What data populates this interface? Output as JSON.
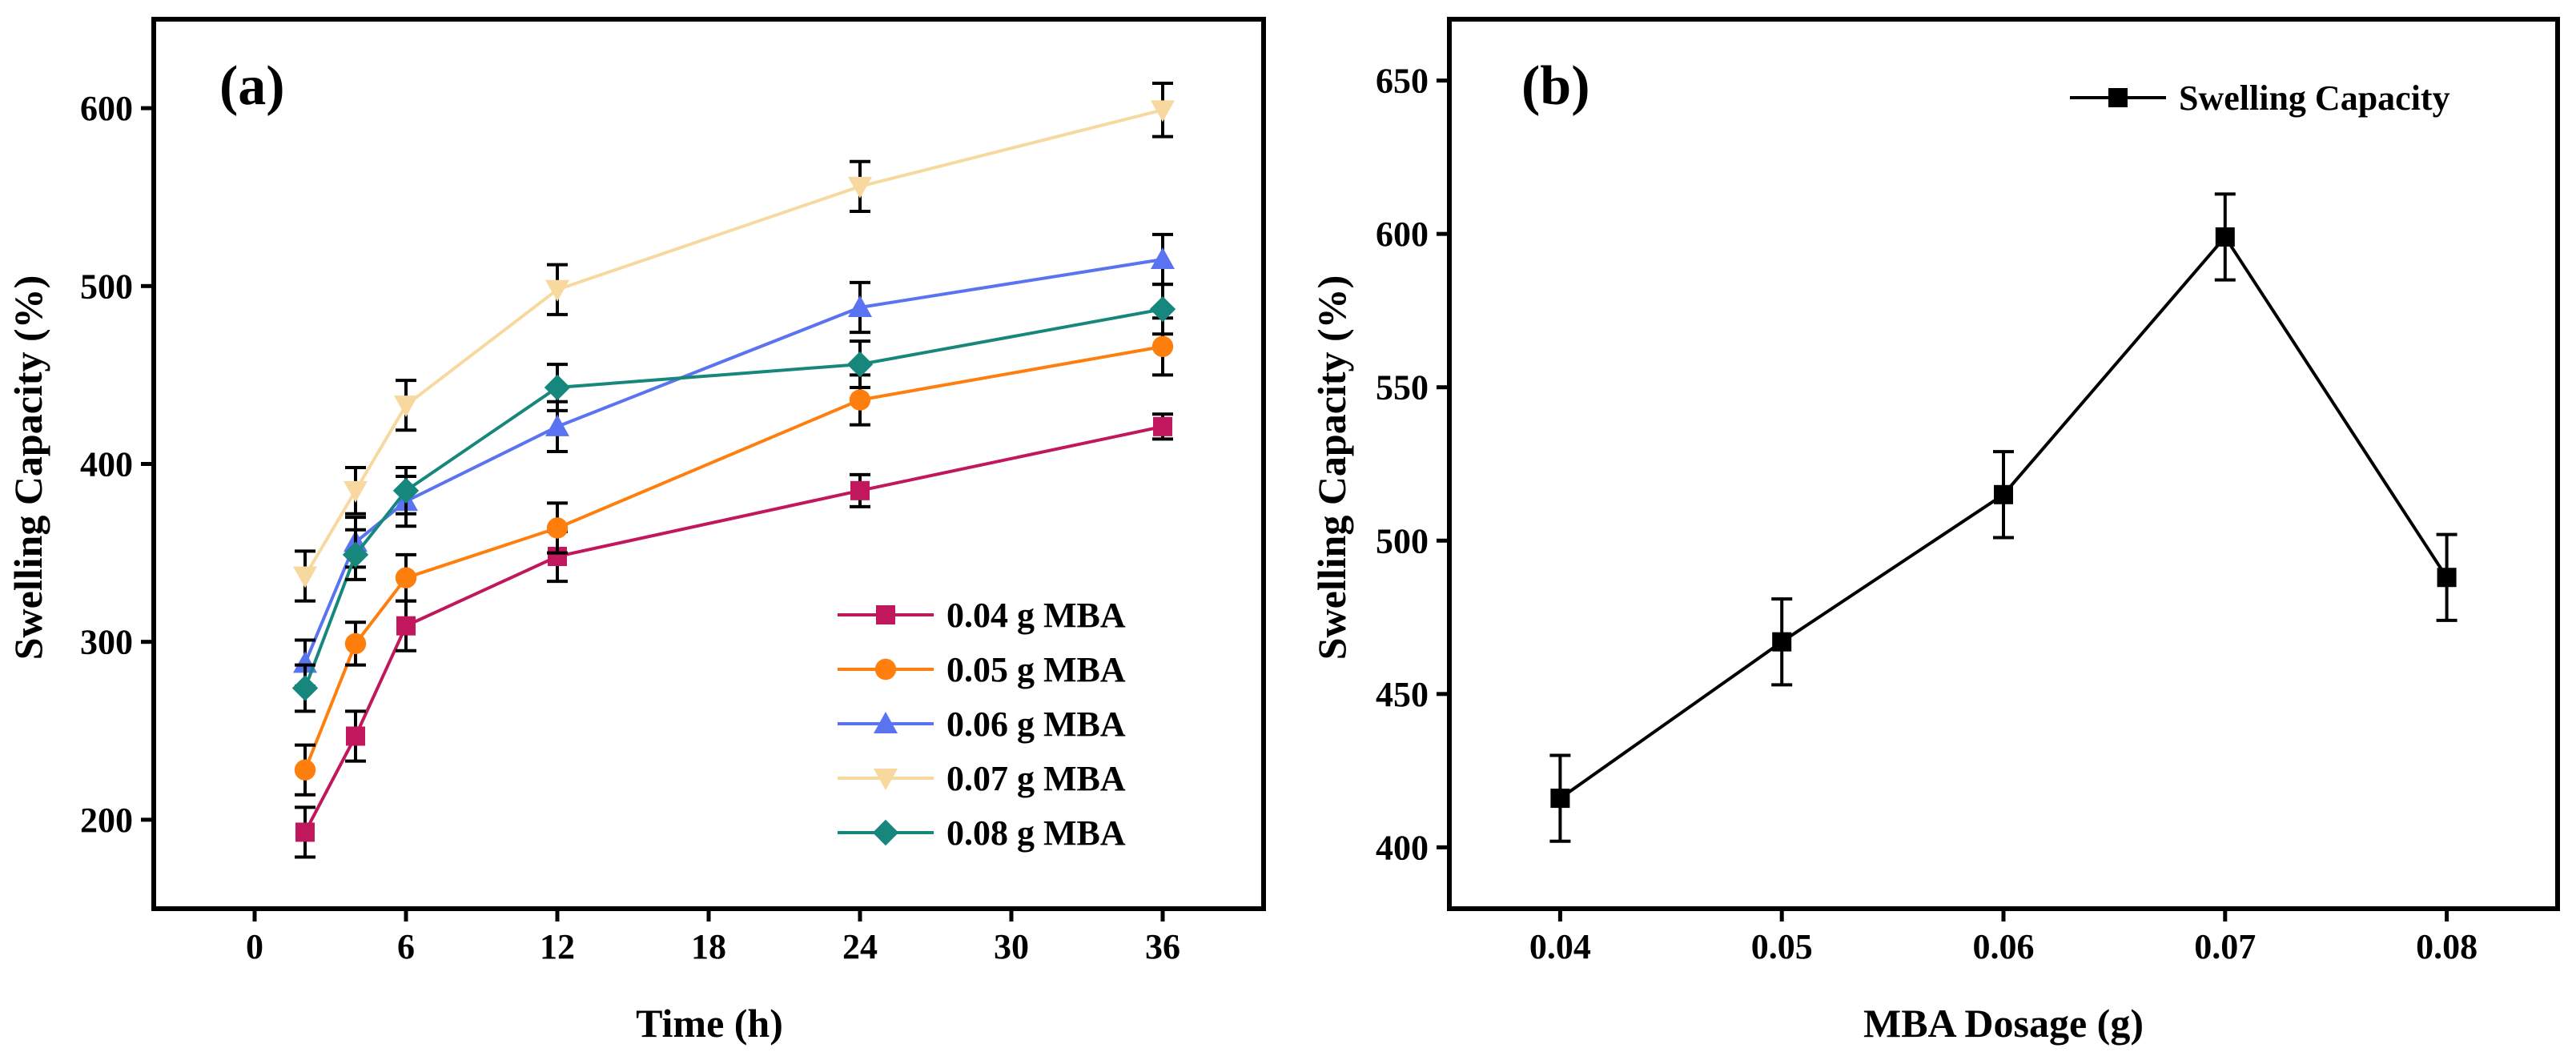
{
  "chart_data": [
    {
      "panel_label": "(a)",
      "type": "line",
      "xlabel": "Time (h)",
      "ylabel": "Swelling Capacity (%)",
      "xlim": [
        -4,
        40
      ],
      "ylim": [
        150,
        650
      ],
      "xticks": [
        0,
        6,
        12,
        18,
        24,
        30,
        36
      ],
      "xtick_labels": [
        "0",
        "6",
        "12",
        "18",
        "24",
        "30",
        "36"
      ],
      "yticks": [
        200,
        300,
        400,
        500,
        600
      ],
      "ytick_labels": [
        "200",
        "300",
        "400",
        "500",
        "600"
      ],
      "legend_position": "bottom-right",
      "x": [
        2,
        4,
        6,
        12,
        24,
        36
      ],
      "series": [
        {
          "name": "0.04 g MBA",
          "color": "#c0175d",
          "marker": "square",
          "values": [
            193,
            247,
            309,
            348,
            385,
            421
          ],
          "errors": [
            14,
            14,
            14,
            14,
            9,
            7
          ]
        },
        {
          "name": "0.05 g MBA",
          "color": "#ff7f0e",
          "marker": "circle",
          "values": [
            228,
            299,
            336,
            364,
            436,
            466
          ],
          "errors": [
            14,
            12,
            13,
            14,
            14,
            16
          ]
        },
        {
          "name": "0.06 g MBA",
          "color": "#5a73f0",
          "marker": "triangle-up",
          "values": [
            288,
            356,
            379,
            421,
            488,
            515
          ],
          "errors": [
            13,
            14,
            14,
            14,
            14,
            14
          ]
        },
        {
          "name": "0.07 g MBA",
          "color": "#f7d9a0",
          "marker": "triangle-down",
          "values": [
            337,
            385,
            433,
            498,
            556,
            599
          ],
          "errors": [
            14,
            13,
            14,
            14,
            14,
            15
          ]
        },
        {
          "name": "0.08 g MBA",
          "color": "#17877d",
          "marker": "diamond",
          "values": [
            274,
            349,
            385,
            443,
            456,
            487
          ],
          "errors": [
            13,
            14,
            13,
            13,
            13,
            14
          ]
        }
      ]
    },
    {
      "panel_label": "(b)",
      "type": "line",
      "xlabel": "MBA Dosage (g)",
      "ylabel": "Swelling Capacity (%)",
      "xlim": [
        0.035,
        0.085
      ],
      "ylim": [
        380,
        670
      ],
      "xticks": [
        0.04,
        0.05,
        0.06,
        0.07,
        0.08
      ],
      "xtick_labels": [
        "0.04",
        "0.05",
        "0.06",
        "0.07",
        "0.08"
      ],
      "yticks": [
        400,
        450,
        500,
        550,
        600,
        650
      ],
      "ytick_labels": [
        "400",
        "450",
        "500",
        "550",
        "600",
        "650"
      ],
      "legend_position": "top-right",
      "x": [
        0.04,
        0.05,
        0.06,
        0.07,
        0.08
      ],
      "series": [
        {
          "name": "Swelling Capacity",
          "color": "#000000",
          "marker": "square",
          "values": [
            416,
            467,
            515,
            599,
            488
          ],
          "errors": [
            14,
            14,
            14,
            14,
            14
          ]
        }
      ]
    }
  ]
}
